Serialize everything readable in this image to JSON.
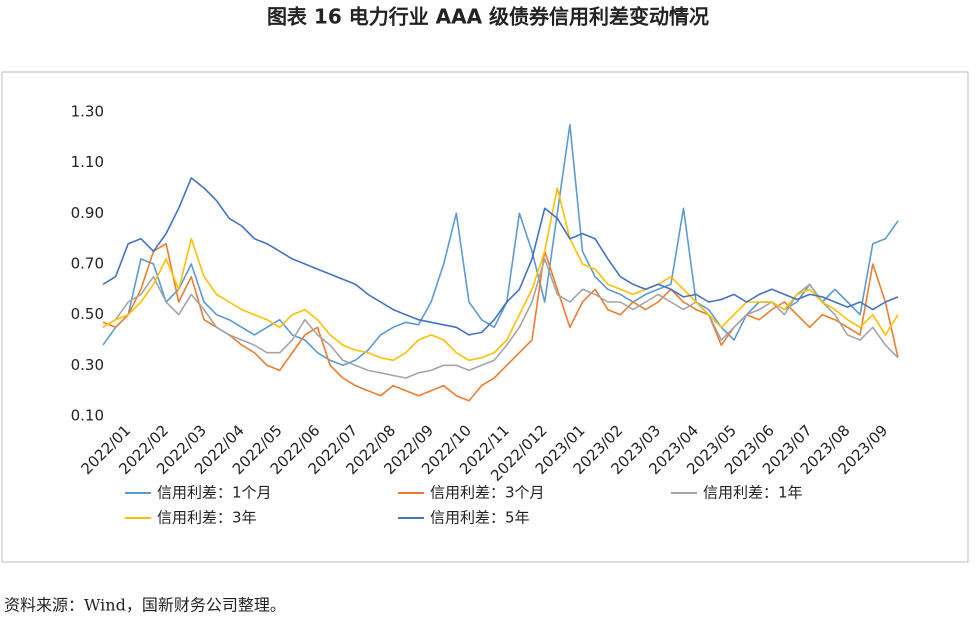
{
  "chart_data": {
    "type": "line",
    "title": "图表 16  电力行业 AAA 级债券信用利差变动情况",
    "source": "资料来源：Wind，国新财务公司整理。",
    "categories": [
      null,
      null,
      "2022/01",
      null,
      null,
      "2022/02",
      null,
      null,
      "2022/03",
      null,
      null,
      "2022/04",
      null,
      null,
      "2022/05",
      null,
      null,
      "2022/06",
      null,
      null,
      "2022/07",
      null,
      null,
      "2022/08",
      null,
      null,
      "2022/09",
      null,
      null,
      "2022/10",
      null,
      null,
      "2022/11",
      null,
      null,
      "2022/012",
      null,
      null,
      "2023/01",
      null,
      null,
      "2023/02",
      null,
      null,
      "2023/03",
      null,
      null,
      "2023/04",
      null,
      null,
      "2023/05",
      null,
      null,
      "2023/06",
      null,
      null,
      "2023/07",
      null,
      null,
      "2023/08",
      null,
      null,
      "2023/09",
      null
    ],
    "ylim": [
      0.1,
      1.3
    ],
    "yticks": [
      {
        "value": 0.1,
        "label": "0.10"
      },
      {
        "value": 0.3,
        "label": "0.30"
      },
      {
        "value": 0.5,
        "label": "0.50"
      },
      {
        "value": 0.7,
        "label": "0.70"
      },
      {
        "value": 0.9,
        "label": "0.90"
      },
      {
        "value": 1.1,
        "label": "1.10"
      },
      {
        "value": 1.3,
        "label": "1.30"
      }
    ],
    "grid": false,
    "legend": "bottom",
    "series": [
      {
        "name": "信用利差：1个月",
        "color": "#5b9bd5",
        "values": [
          0.38,
          0.45,
          0.5,
          0.72,
          0.7,
          0.55,
          0.6,
          0.7,
          0.55,
          0.5,
          0.48,
          0.45,
          0.42,
          0.45,
          0.48,
          0.42,
          0.4,
          0.35,
          0.32,
          0.3,
          0.32,
          0.36,
          0.42,
          0.45,
          0.47,
          0.46,
          0.55,
          0.7,
          0.9,
          0.55,
          0.48,
          0.45,
          0.55,
          0.9,
          0.75,
          0.55,
          0.9,
          1.25,
          0.75,
          0.65,
          0.6,
          0.58,
          0.55,
          0.58,
          0.6,
          0.62,
          0.92,
          0.55,
          0.52,
          0.45,
          0.4,
          0.5,
          0.55,
          0.55,
          0.52,
          0.55,
          0.62,
          0.55,
          0.6,
          0.55,
          0.5,
          0.78,
          0.8,
          0.87
        ]
      },
      {
        "name": "信用利差：3个月",
        "color": "#ed7d31",
        "values": [
          0.47,
          0.45,
          0.5,
          0.6,
          0.75,
          0.78,
          0.55,
          0.65,
          0.48,
          0.45,
          0.42,
          0.38,
          0.35,
          0.3,
          0.28,
          0.35,
          0.42,
          0.45,
          0.3,
          0.25,
          0.22,
          0.2,
          0.18,
          0.22,
          0.2,
          0.18,
          0.2,
          0.22,
          0.18,
          0.16,
          0.22,
          0.25,
          0.3,
          0.35,
          0.4,
          0.75,
          0.6,
          0.45,
          0.55,
          0.6,
          0.52,
          0.5,
          0.55,
          0.52,
          0.55,
          0.6,
          0.55,
          0.52,
          0.5,
          0.38,
          0.45,
          0.5,
          0.48,
          0.52,
          0.55,
          0.5,
          0.45,
          0.5,
          0.48,
          0.45,
          0.42,
          0.7,
          0.55,
          0.33
        ]
      },
      {
        "name": "信用利差：1年",
        "color": "#a5a5a5",
        "values": [
          0.45,
          0.48,
          0.55,
          0.58,
          0.65,
          0.55,
          0.5,
          0.58,
          0.52,
          0.45,
          0.42,
          0.4,
          0.38,
          0.35,
          0.35,
          0.4,
          0.48,
          0.42,
          0.38,
          0.32,
          0.3,
          0.28,
          0.27,
          0.26,
          0.25,
          0.27,
          0.28,
          0.3,
          0.3,
          0.28,
          0.3,
          0.32,
          0.38,
          0.45,
          0.55,
          0.72,
          0.58,
          0.55,
          0.6,
          0.58,
          0.55,
          0.55,
          0.52,
          0.55,
          0.58,
          0.55,
          0.52,
          0.55,
          0.5,
          0.4,
          0.45,
          0.5,
          0.52,
          0.55,
          0.5,
          0.58,
          0.62,
          0.55,
          0.5,
          0.42,
          0.4,
          0.45,
          0.38,
          0.33
        ]
      },
      {
        "name": "信用利差：3年",
        "color": "#ffc000",
        "values": [
          0.45,
          0.48,
          0.5,
          0.55,
          0.62,
          0.72,
          0.6,
          0.8,
          0.65,
          0.58,
          0.55,
          0.52,
          0.5,
          0.48,
          0.45,
          0.5,
          0.52,
          0.48,
          0.42,
          0.38,
          0.36,
          0.35,
          0.33,
          0.32,
          0.35,
          0.4,
          0.42,
          0.4,
          0.35,
          0.32,
          0.33,
          0.35,
          0.4,
          0.5,
          0.6,
          0.75,
          1.0,
          0.8,
          0.7,
          0.68,
          0.62,
          0.6,
          0.58,
          0.6,
          0.62,
          0.65,
          0.6,
          0.55,
          0.5,
          0.45,
          0.5,
          0.55,
          0.55,
          0.55,
          0.52,
          0.58,
          0.6,
          0.55,
          0.52,
          0.48,
          0.45,
          0.5,
          0.42,
          0.5
        ]
      },
      {
        "name": "信用利差：5年",
        "color": "#4472c4",
        "values": [
          0.62,
          0.65,
          0.78,
          0.8,
          0.75,
          0.82,
          0.92,
          1.04,
          1.0,
          0.95,
          0.88,
          0.85,
          0.8,
          0.78,
          0.75,
          0.72,
          0.7,
          0.68,
          0.66,
          0.64,
          0.62,
          0.58,
          0.55,
          0.52,
          0.5,
          0.48,
          0.47,
          0.46,
          0.45,
          0.42,
          0.43,
          0.48,
          0.55,
          0.6,
          0.72,
          0.92,
          0.88,
          0.8,
          0.82,
          0.8,
          0.72,
          0.65,
          0.62,
          0.6,
          0.62,
          0.6,
          0.57,
          0.58,
          0.55,
          0.56,
          0.58,
          0.55,
          0.58,
          0.6,
          0.58,
          0.56,
          0.58,
          0.57,
          0.55,
          0.53,
          0.55,
          0.52,
          0.55,
          0.57
        ]
      }
    ]
  }
}
